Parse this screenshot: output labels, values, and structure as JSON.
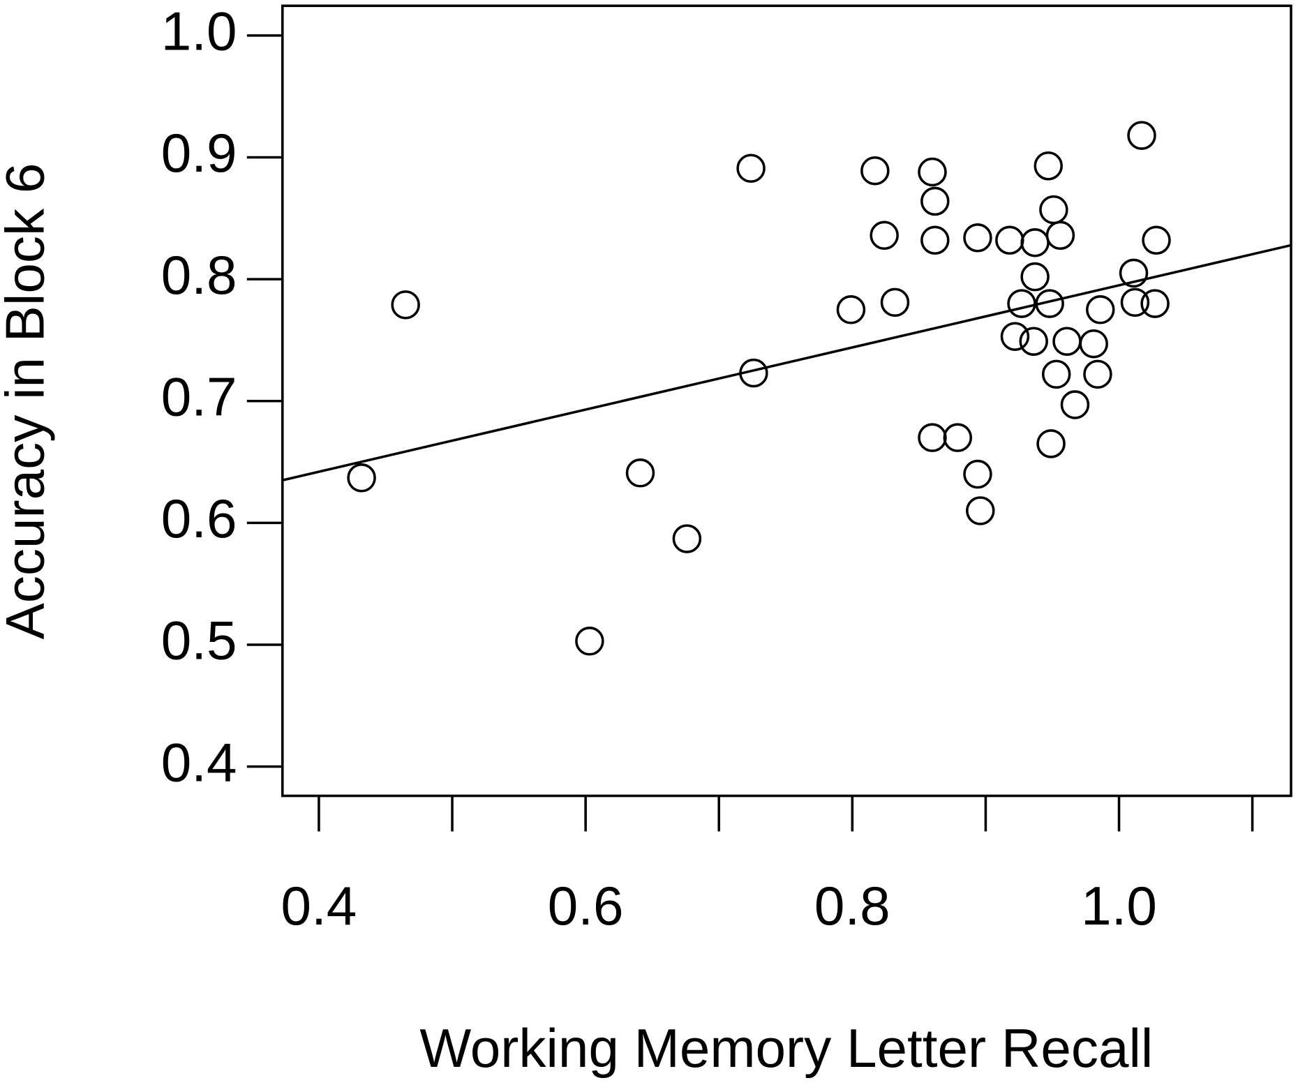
{
  "chart_data": {
    "type": "scatter",
    "x_label": "Working Memory Letter Recall",
    "y_label": "Accuracy in Block 6",
    "x": [
      0.432,
      0.465,
      0.724,
      0.726,
      0.603,
      0.641,
      0.676,
      0.799,
      0.817,
      0.824,
      0.832,
      0.86,
      0.862,
      0.862,
      0.86,
      0.879,
      0.894,
      0.896,
      0.894,
      0.918,
      0.937,
      0.937,
      0.927,
      0.922,
      0.936,
      0.947,
      0.951,
      0.956,
      0.948,
      0.961,
      0.953,
      0.967,
      0.949,
      0.981,
      0.984,
      0.986,
      1.011,
      1.012,
      1.027,
      1.028,
      1.017
    ],
    "values": [
      0.637,
      0.779,
      0.891,
      0.723,
      0.503,
      0.641,
      0.587,
      0.775,
      0.889,
      0.836,
      0.781,
      0.888,
      0.864,
      0.832,
      0.67,
      0.67,
      0.64,
      0.61,
      0.834,
      0.832,
      0.83,
      0.802,
      0.78,
      0.753,
      0.749,
      0.893,
      0.857,
      0.836,
      0.78,
      0.749,
      0.722,
      0.697,
      0.665,
      0.747,
      0.722,
      0.775,
      0.805,
      0.781,
      0.78,
      0.832,
      0.918
    ],
    "color": "#000000",
    "fit": {
      "intercept": 0.54,
      "slope": 0.255
    },
    "xlim": [
      0.3727,
      1.129
    ],
    "ylim": [
      0.376,
      1.0244
    ],
    "xticks": [
      0.4,
      {
        "value": 0.5,
        "label": null
      },
      0.6,
      {
        "value": 0.7,
        "label": null
      },
      0.8,
      {
        "value": 0.9,
        "label": null
      },
      {
        "value": 1.0,
        "label": "1.0"
      },
      {
        "value": 1.1,
        "label": null
      }
    ],
    "yticks": [
      0.4,
      0.5,
      0.6,
      0.7,
      0.8,
      0.9,
      {
        "value": 1.0,
        "label": "1.0"
      }
    ],
    "grid": false
  }
}
